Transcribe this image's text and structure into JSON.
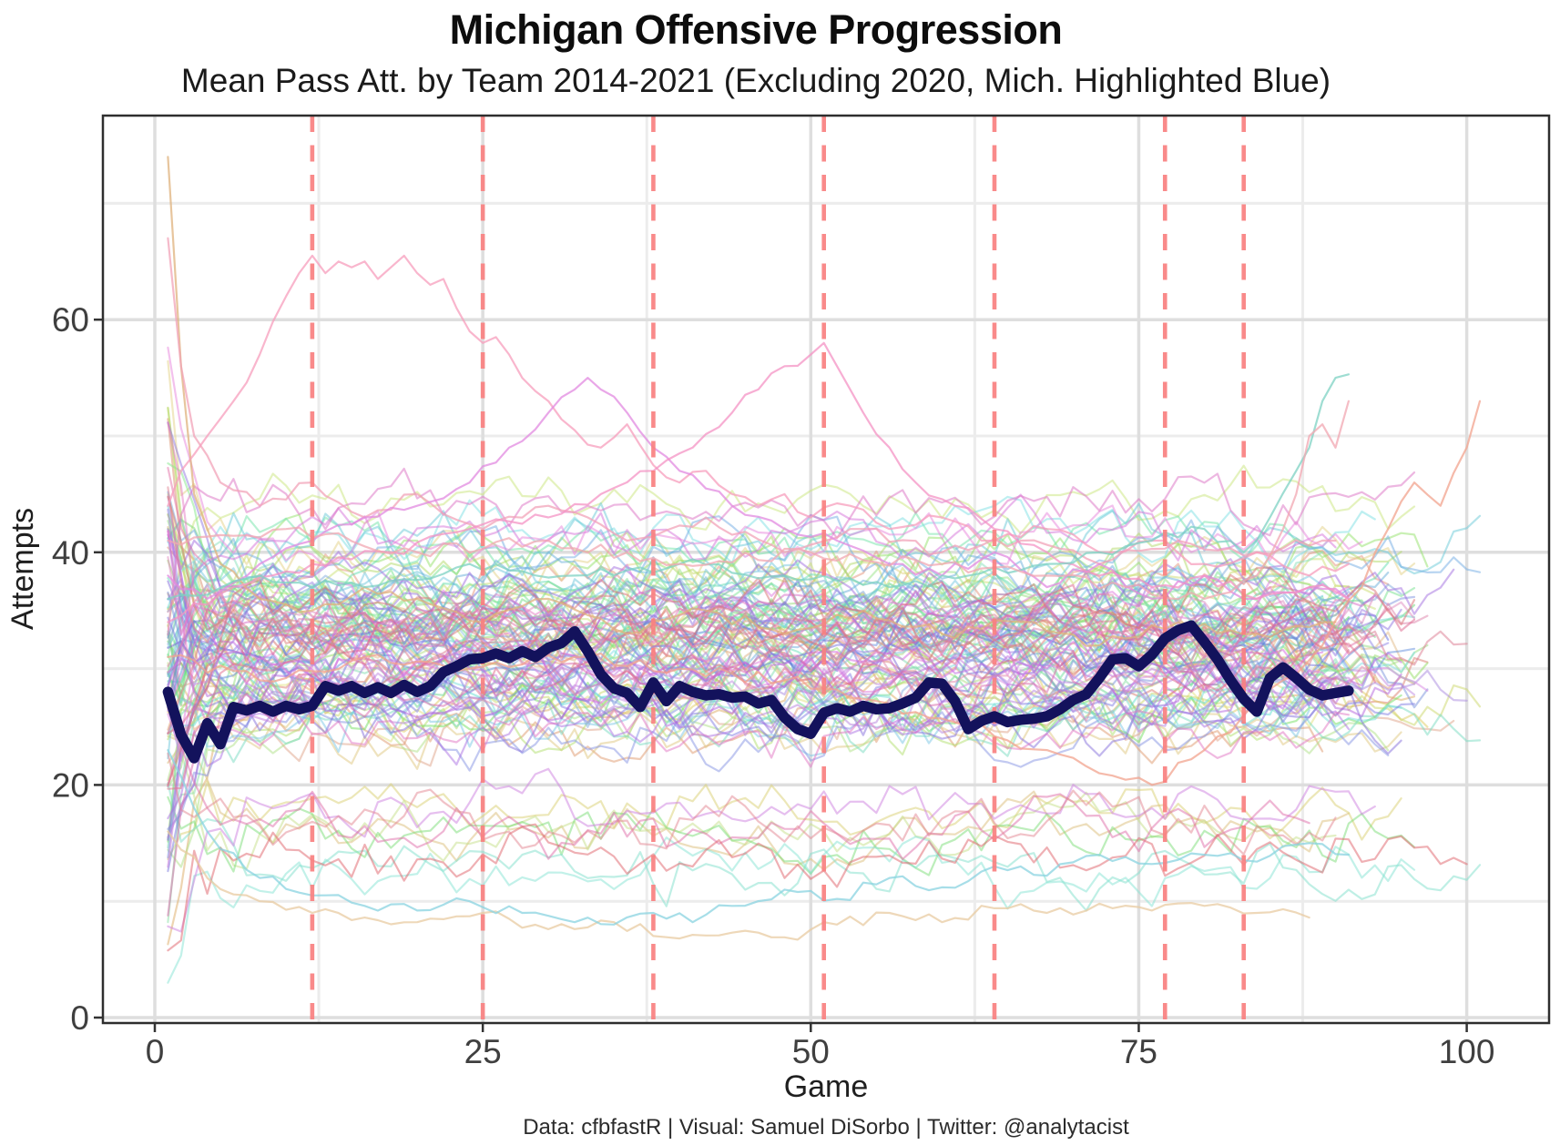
{
  "header": {
    "title": "Michigan Offensive Progression",
    "subtitle": "Mean Pass Att. by Team 2014-2021 (Excluding 2020, Mich. Highlighted Blue)"
  },
  "caption": "Data: cfbfastR | Visual: Samuel DiSorbo | Twitter: @analytacist",
  "chart_data": {
    "type": "line",
    "title": "Michigan Offensive Progression",
    "subtitle": "Mean Pass Att. by Team 2014-2021 (Excluding 2020, Mich. Highlighted Blue)",
    "xlabel": "Game",
    "ylabel": "Attempts",
    "xlim": [
      -4,
      106
    ],
    "ylim": [
      -0.5,
      77.5
    ],
    "x_ticks": [
      0,
      25,
      50,
      75,
      100
    ],
    "y_ticks": [
      0,
      20,
      40,
      60
    ],
    "grid": "major+minor",
    "legend": "none",
    "season_boundaries": {
      "games": [
        12,
        25,
        38,
        51,
        64,
        77,
        83
      ],
      "color": "#f98080",
      "style": "dashed"
    },
    "michigan": {
      "name": "Michigan",
      "color": "#13125c",
      "line_width": 11.5,
      "x_start": 1,
      "values": [
        28.0,
        24.3,
        22.3,
        25.3,
        23.5,
        26.7,
        26.4,
        26.8,
        26.3,
        26.8,
        26.5,
        26.8,
        28.5,
        28.1,
        28.5,
        27.9,
        28.4,
        27.9,
        28.6,
        28.0,
        28.5,
        29.7,
        30.2,
        30.8,
        30.9,
        31.3,
        30.9,
        31.5,
        31.0,
        31.8,
        32.2,
        33.2,
        31.5,
        29.5,
        28.3,
        27.9,
        26.7,
        28.8,
        27.2,
        28.5,
        28.0,
        27.7,
        27.8,
        27.5,
        27.6,
        27.0,
        27.3,
        25.8,
        24.8,
        24.4,
        26.2,
        26.6,
        26.3,
        26.8,
        26.5,
        26.6,
        27.0,
        27.5,
        28.8,
        28.7,
        27.2,
        24.8,
        25.5,
        25.9,
        25.4,
        25.6,
        25.7,
        25.9,
        26.5,
        27.3,
        27.8,
        29.2,
        30.8,
        30.9,
        30.2,
        31.2,
        32.6,
        33.3,
        33.7,
        32.3,
        30.8,
        29.0,
        27.4,
        26.3,
        29.2,
        30.1,
        29.2,
        28.2,
        27.7,
        27.9,
        28.1
      ]
    },
    "background": {
      "teams": 118,
      "seed": 88,
      "alpha": 0.5,
      "line_width": 2.2,
      "features": [
        {
          "name": "tan-spike",
          "color": "#dfb27c",
          "points": [
            [
              1,
              74
            ],
            [
              2,
              56
            ],
            [
              3,
              45
            ],
            [
              5,
              39
            ],
            [
              8,
              36
            ],
            [
              12,
              35
            ],
            [
              16,
              37
            ],
            [
              20,
              36
            ],
            [
              25,
              34
            ],
            [
              30,
              36
            ],
            [
              36,
              33
            ],
            [
              42,
              35
            ],
            [
              48,
              33
            ],
            [
              54,
              35
            ],
            [
              60,
              33
            ],
            [
              66,
              34
            ],
            [
              72,
              32
            ],
            [
              78,
              34
            ],
            [
              84,
              33
            ],
            [
              90,
              34
            ]
          ]
        },
        {
          "name": "pink-drop",
          "color": "#f2a3b8",
          "points": [
            [
              1,
              67
            ],
            [
              2,
              56
            ],
            [
              3,
              50
            ],
            [
              5,
              46
            ],
            [
              8,
              44
            ],
            [
              12,
              46
            ],
            [
              16,
              43
            ],
            [
              20,
              45
            ],
            [
              25,
              42
            ],
            [
              30,
              44
            ],
            [
              36,
              41
            ],
            [
              42,
              43
            ],
            [
              48,
              40
            ],
            [
              54,
              42
            ],
            [
              60,
              40
            ],
            [
              66,
              41
            ],
            [
              72,
              39
            ],
            [
              78,
              41
            ],
            [
              84,
              40
            ],
            [
              90,
              41
            ]
          ]
        },
        {
          "name": "pink-arc",
          "color": "#f79ebc",
          "points": [
            [
              1,
              44
            ],
            [
              2,
              47
            ],
            [
              4,
              50
            ],
            [
              6,
              53
            ],
            [
              8,
              57
            ],
            [
              10,
              62
            ],
            [
              11,
              64
            ],
            [
              12,
              65.5
            ],
            [
              13,
              64
            ],
            [
              14,
              65
            ],
            [
              15,
              64.5
            ],
            [
              16,
              65
            ],
            [
              17,
              63.5
            ],
            [
              18,
              64.5
            ],
            [
              19,
              65.5
            ],
            [
              20,
              64
            ],
            [
              21,
              63
            ],
            [
              22,
              63.5
            ],
            [
              23,
              61
            ],
            [
              24,
              59
            ],
            [
              25,
              58
            ],
            [
              26,
              58.5
            ],
            [
              27,
              57
            ],
            [
              28,
              55
            ],
            [
              30,
              53
            ],
            [
              32,
              50.5
            ],
            [
              34,
              49
            ],
            [
              36,
              51
            ],
            [
              38,
              47.5
            ],
            [
              40,
              46
            ],
            [
              42,
              47
            ],
            [
              44,
              45
            ],
            [
              46,
              44
            ],
            [
              48,
              45
            ],
            [
              50,
              43
            ],
            [
              53,
              44
            ],
            [
              56,
              42
            ],
            [
              60,
              43
            ],
            [
              64,
              41
            ],
            [
              68,
              42
            ],
            [
              72,
              40
            ],
            [
              76,
              41
            ],
            [
              80,
              39
            ],
            [
              84,
              40
            ],
            [
              88,
              38
            ],
            [
              91,
              39
            ]
          ]
        },
        {
          "name": "magenta-peak",
          "color": "#e18ae0",
          "points": [
            [
              1,
              38
            ],
            [
              4,
              36
            ],
            [
              8,
              39
            ],
            [
              12,
              41
            ],
            [
              16,
              43
            ],
            [
              20,
              44
            ],
            [
              24,
              46
            ],
            [
              27,
              49
            ],
            [
              30,
              52
            ],
            [
              32,
              54
            ],
            [
              33,
              55
            ],
            [
              34,
              54
            ],
            [
              36,
              52
            ],
            [
              38,
              49
            ],
            [
              40,
              47
            ],
            [
              44,
              44
            ],
            [
              48,
              42
            ],
            [
              52,
              41
            ],
            [
              56,
              39
            ],
            [
              60,
              38
            ],
            [
              64,
              40
            ],
            [
              68,
              37
            ],
            [
              72,
              39
            ],
            [
              76,
              36
            ],
            [
              80,
              38
            ],
            [
              84,
              36
            ],
            [
              88,
              37
            ],
            [
              91,
              36
            ]
          ]
        },
        {
          "name": "pink-peak50",
          "color": "#f493c4",
          "points": [
            [
              1,
              34
            ],
            [
              6,
              37
            ],
            [
              12,
              39
            ],
            [
              18,
              40
            ],
            [
              24,
              42
            ],
            [
              30,
              43
            ],
            [
              34,
              45
            ],
            [
              38,
              47
            ],
            [
              41,
              49
            ],
            [
              44,
              52
            ],
            [
              46,
              54
            ],
            [
              48,
              56
            ],
            [
              50,
              57
            ],
            [
              51,
              58
            ],
            [
              52,
              56
            ],
            [
              54,
              52
            ],
            [
              56,
              49
            ],
            [
              58,
              46
            ],
            [
              61,
              44
            ],
            [
              64,
              42
            ],
            [
              68,
              40
            ],
            [
              72,
              38
            ],
            [
              76,
              37
            ],
            [
              80,
              38
            ],
            [
              84,
              36
            ],
            [
              88,
              37
            ],
            [
              91,
              36
            ]
          ]
        },
        {
          "name": "wheat-low",
          "color": "#e8cba2",
          "points": [
            [
              1,
              16
            ],
            [
              4,
              12
            ],
            [
              8,
              10
            ],
            [
              12,
              9
            ],
            [
              16,
              8.6
            ],
            [
              20,
              8.2
            ],
            [
              25,
              9
            ],
            [
              30,
              7.6
            ],
            [
              35,
              8.2
            ],
            [
              40,
              6.8
            ],
            [
              44,
              7.3
            ],
            [
              48,
              6.9
            ],
            [
              52,
              8
            ],
            [
              56,
              9
            ],
            [
              60,
              8.2
            ],
            [
              64,
              9.4
            ],
            [
              68,
              9
            ],
            [
              72,
              9.8
            ],
            [
              76,
              9.2
            ],
            [
              80,
              9.6
            ],
            [
              84,
              9
            ],
            [
              88,
              8.6
            ]
          ]
        },
        {
          "name": "cyan-low",
          "color": "#8ad3e0",
          "points": [
            [
              1,
              23
            ],
            [
              4,
              16
            ],
            [
              8,
              12
            ],
            [
              12,
              10.5
            ],
            [
              16,
              9.6
            ],
            [
              20,
              9.2
            ],
            [
              24,
              10
            ],
            [
              28,
              9
            ],
            [
              32,
              8.2
            ],
            [
              35,
              8
            ],
            [
              38,
              9
            ],
            [
              41,
              8.2
            ],
            [
              44,
              9.6
            ],
            [
              48,
              11
            ],
            [
              52,
              10.2
            ],
            [
              56,
              12
            ],
            [
              60,
              11.2
            ],
            [
              64,
              13
            ],
            [
              68,
              12.2
            ],
            [
              72,
              14
            ],
            [
              76,
              13.2
            ],
            [
              80,
              14
            ],
            [
              84,
              13.4
            ],
            [
              88,
              15
            ],
            [
              91,
              14
            ]
          ]
        },
        {
          "name": "salmon-rise",
          "color": "#f2a38d",
          "points": [
            [
              1,
              31
            ],
            [
              8,
              29
            ],
            [
              16,
              31
            ],
            [
              24,
              30
            ],
            [
              32,
              31
            ],
            [
              40,
              30
            ],
            [
              48,
              29
            ],
            [
              56,
              27
            ],
            [
              62,
              25
            ],
            [
              68,
              23
            ],
            [
              72,
              21
            ],
            [
              76,
              20
            ],
            [
              80,
              23
            ],
            [
              83,
              26
            ],
            [
              86,
              29
            ],
            [
              89,
              32
            ],
            [
              92,
              37
            ],
            [
              94,
              42
            ],
            [
              96,
              46
            ],
            [
              98,
              44
            ],
            [
              100,
              49
            ],
            [
              101,
              53
            ]
          ]
        },
        {
          "name": "teal-end",
          "color": "#7ed2c3",
          "points": [
            [
              1,
              36
            ],
            [
              8,
              38
            ],
            [
              16,
              37
            ],
            [
              24,
              39
            ],
            [
              32,
              38
            ],
            [
              40,
              39
            ],
            [
              48,
              38
            ],
            [
              56,
              37
            ],
            [
              62,
              38
            ],
            [
              68,
              39
            ],
            [
              72,
              40
            ],
            [
              76,
              41
            ],
            [
              80,
              42
            ],
            [
              83,
              40
            ],
            [
              85,
              43
            ],
            [
              87,
              47
            ],
            [
              88,
              49
            ],
            [
              89,
              53
            ],
            [
              90,
              55
            ],
            [
              91,
              55.3
            ]
          ]
        },
        {
          "name": "pink-end",
          "color": "#f2a7b2",
          "points": [
            [
              1,
              41
            ],
            [
              10,
              42
            ],
            [
              20,
              40
            ],
            [
              30,
              41
            ],
            [
              40,
              39
            ],
            [
              50,
              40
            ],
            [
              60,
              39
            ],
            [
              68,
              38
            ],
            [
              74,
              37
            ],
            [
              80,
              36
            ],
            [
              84,
              38
            ],
            [
              86,
              42
            ],
            [
              87,
              45
            ],
            [
              88,
              50
            ],
            [
              89,
              51
            ],
            [
              90,
              49
            ],
            [
              91,
              53
            ]
          ]
        }
      ]
    }
  },
  "colors": {
    "boundary": "#f98080",
    "michigan": "#13125c",
    "grid_major": "#dedede",
    "grid_minor": "#ececec",
    "panel_border": "#2e2e2e",
    "tick_mark": "#333333",
    "axis_text": "#3f3f3f"
  }
}
